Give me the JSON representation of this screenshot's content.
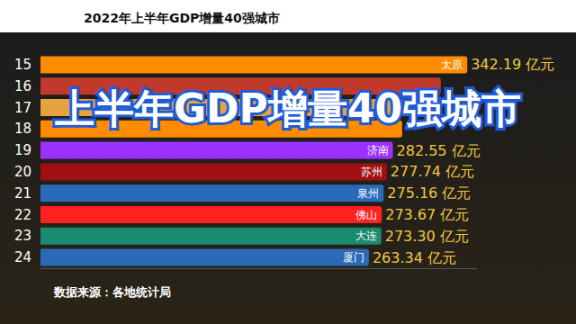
{
  "chart_data": {
    "type": "bar",
    "orientation": "horizontal",
    "title": "2022年上半年GDP增量40强城市",
    "annotations": [
      "上半年GDP增量40强城市",
      "数据来源：各地统计局"
    ],
    "categories": [
      "15",
      "16",
      "17",
      "18",
      "19",
      "20",
      "21",
      "22",
      "23",
      "24"
    ],
    "cities": [
      "太原",
      null,
      null,
      null,
      "济南",
      "苏州",
      "泉州",
      "佛山",
      "大连",
      "厦门"
    ],
    "values": [
      342.19,
      321,
      305,
      290,
      282.55,
      277.74,
      275.16,
      273.67,
      273.3,
      263.34
    ],
    "value_labels": [
      "342.19 亿元",
      null,
      null,
      null,
      "282.55 亿元",
      "277.74 亿元",
      "275.16 亿元",
      "273.67 亿元",
      "273.30 亿元",
      "263.34 亿元"
    ],
    "colors": [
      "#ff8c00",
      "#c0392b",
      "#e6a23c",
      "#ff8c00",
      "#9b30ff",
      "#a01010",
      "#2a6ab8",
      "#ff2020",
      "#1a8a70",
      "#2a6ab8"
    ],
    "xlim": [
      0,
      350
    ],
    "xticks": [
      0,
      350
    ],
    "tick_labels": "y",
    "grid": false,
    "data_labels": true
  }
}
